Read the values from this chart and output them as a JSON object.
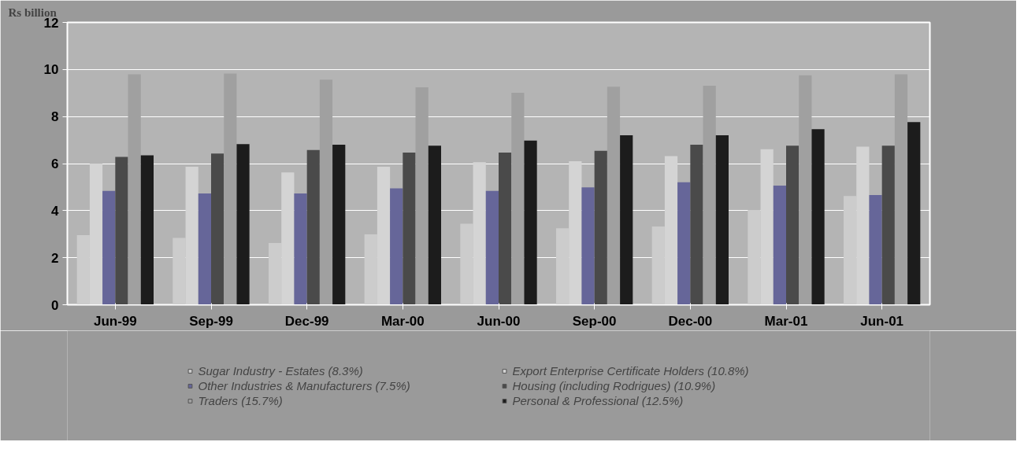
{
  "chart_data": {
    "type": "bar",
    "ylabel": "Rs billion",
    "categories": [
      "Jun-99",
      "Sep-99",
      "Dec-99",
      "Mar-00",
      "Jun-00",
      "Sep-00",
      "Dec-00",
      "Mar-01",
      "Jun-01"
    ],
    "series": [
      {
        "name": "Sugar Industry - Estates (8.3%)",
        "color": "#cccccc",
        "values": [
          2.96,
          2.84,
          2.62,
          2.99,
          3.44,
          3.25,
          3.33,
          4.03,
          4.62
        ]
      },
      {
        "name": "Export Enterprise Certificate Holders (10.8%)",
        "color": "#d4d4d4",
        "values": [
          6.0,
          5.87,
          5.62,
          5.87,
          6.06,
          6.1,
          6.32,
          6.61,
          6.72
        ]
      },
      {
        "name": "Other Industries & Manufacturers (7.5%)",
        "color": "#666699",
        "values": [
          4.84,
          4.73,
          4.73,
          4.95,
          4.84,
          4.99,
          5.21,
          5.06,
          4.66
        ]
      },
      {
        "name": "Housing (including Rodrigues) (10.9%)",
        "color": "#4a4a4a",
        "values": [
          6.28,
          6.43,
          6.58,
          6.47,
          6.47,
          6.54,
          6.8,
          6.76,
          6.76
        ]
      },
      {
        "name": "Traders (15.7%)",
        "color": "#a0a0a0",
        "values": [
          9.79,
          9.83,
          9.57,
          9.24,
          9.01,
          9.27,
          9.31,
          9.75,
          9.79
        ]
      },
      {
        "name": "Personal & Professional (12.5%)",
        "color": "#1c1c1c",
        "values": [
          6.35,
          6.83,
          6.8,
          6.76,
          6.98,
          7.2,
          7.2,
          7.46,
          7.76
        ]
      }
    ],
    "ylim": [
      0,
      12
    ],
    "yticks": [
      0,
      2,
      4,
      6,
      8,
      10,
      12
    ],
    "grid": "y",
    "legend": "bottom"
  }
}
